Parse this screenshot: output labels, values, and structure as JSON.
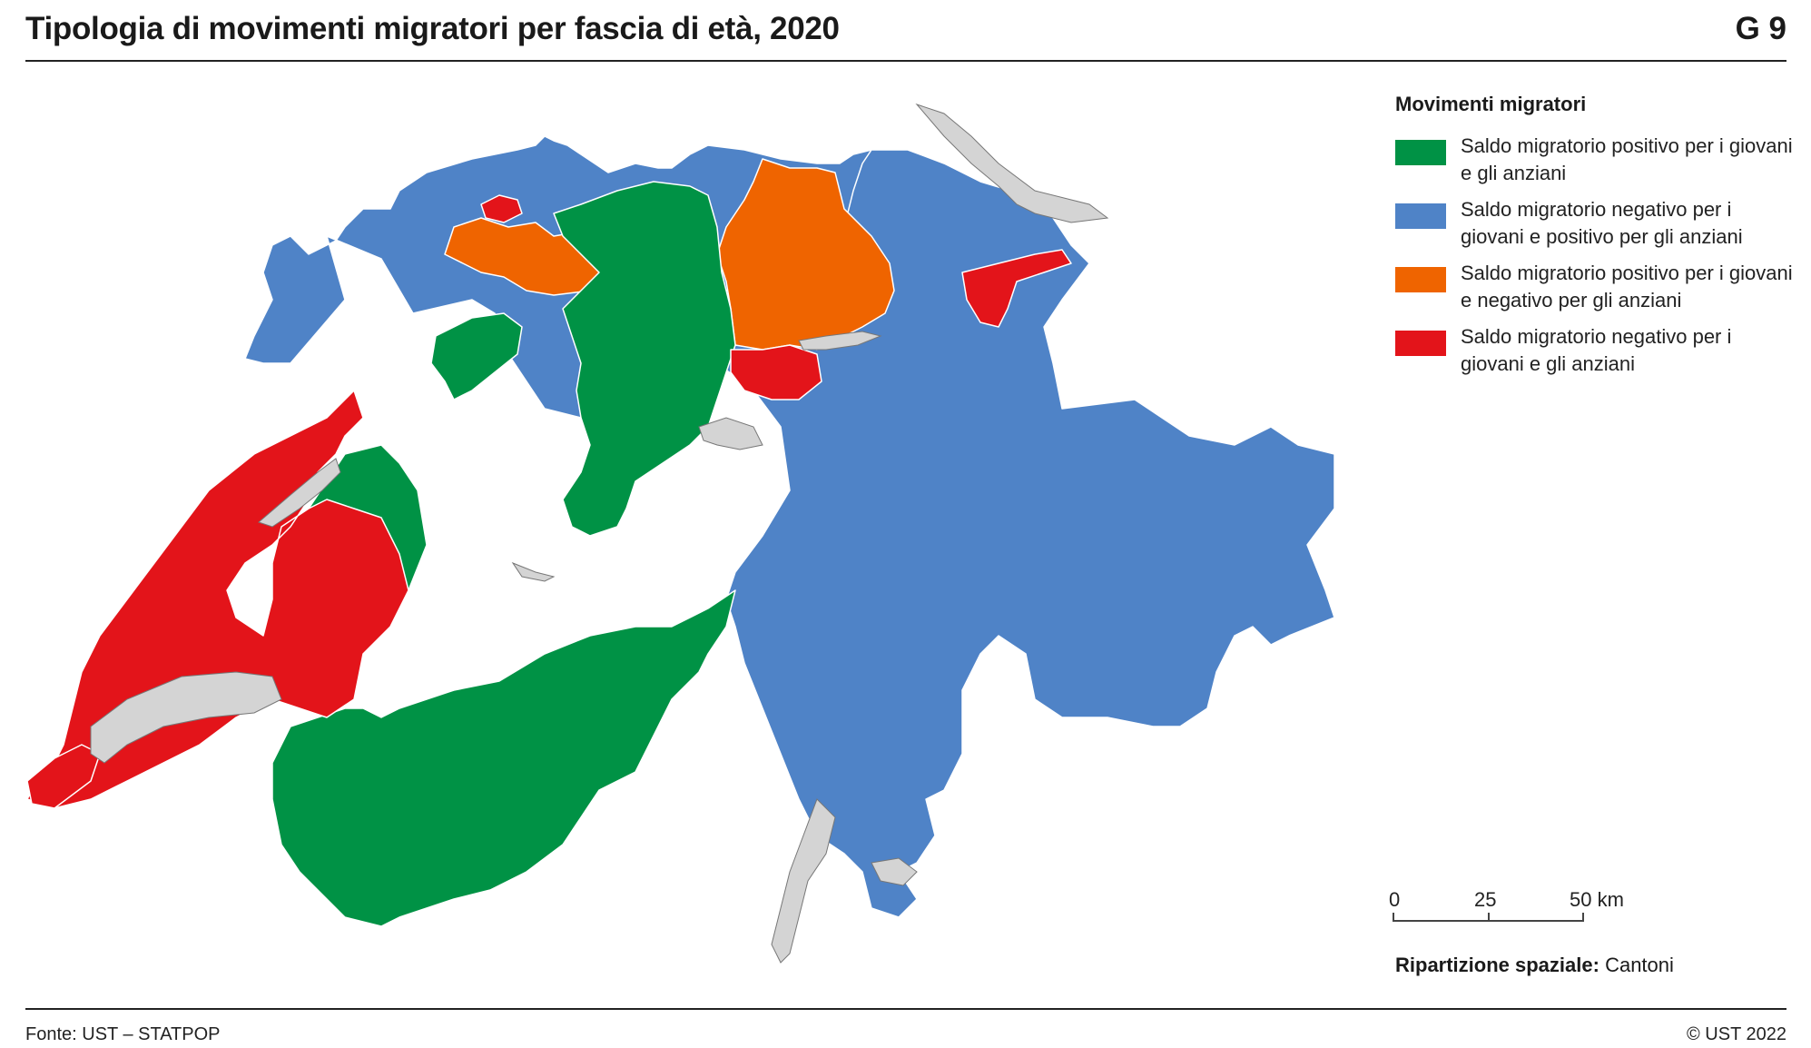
{
  "header": {
    "title": "Tipologia di movimenti migratori per fascia di età, 2020",
    "code": "G 9"
  },
  "legend": {
    "title": "Movimenti migratori",
    "items": [
      {
        "label": "Saldo migratorio positivo per i giovani e gli anziani",
        "color": "#009245"
      },
      {
        "label": "Saldo migratorio negativo per i giovani e positivo per gli anziani",
        "color": "#4f83c7"
      },
      {
        "label": "Saldo migratorio positivo per i giovani e negativo per gli anziani",
        "color": "#ef6400"
      },
      {
        "label": "Saldo migratorio negativo per i giovani e gli anziani",
        "color": "#e3141a"
      }
    ]
  },
  "scale": {
    "labels": [
      "0",
      "25",
      "50 km"
    ]
  },
  "partition": {
    "label": "Ripartizione spaziale:",
    "value": "Cantoni"
  },
  "footer": {
    "source": "Fonte: UST – STATPOP",
    "copyright": "© UST 2022"
  },
  "colors": {
    "lake": "#d4d4d4",
    "border": "#555555"
  }
}
